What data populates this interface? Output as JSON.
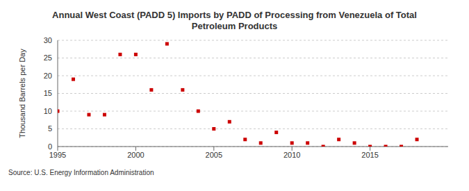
{
  "chart_data": {
    "type": "scatter",
    "title": "Annual West Coast (PADD 5) Imports by PADD of Processing from Venezuela of Total Petroleum Products",
    "y_label": "Thousand Barrels per Day",
    "source": "Source: U.S. Energy Information Administration",
    "x": [
      1995,
      1996,
      1997,
      1998,
      1999,
      2000,
      2001,
      2002,
      2003,
      2004,
      2005,
      2006,
      2007,
      2008,
      2009,
      2010,
      2011,
      2012,
      2013,
      2014,
      2015,
      2016,
      2017,
      2018
    ],
    "values": [
      10,
      19,
      9,
      9,
      26,
      26,
      16,
      29,
      16,
      10,
      5,
      7,
      2,
      1,
      4,
      1,
      1,
      0,
      2,
      1,
      0,
      0,
      0,
      2
    ],
    "color": "#cc0000",
    "marker": "square",
    "xlim": [
      1995,
      2020
    ],
    "xticks": [
      1995,
      2000,
      2005,
      2010,
      2015
    ],
    "ylim": [
      0,
      30
    ],
    "yticks": [
      0,
      5,
      10,
      15,
      20,
      25,
      30
    ],
    "grid": true
  }
}
